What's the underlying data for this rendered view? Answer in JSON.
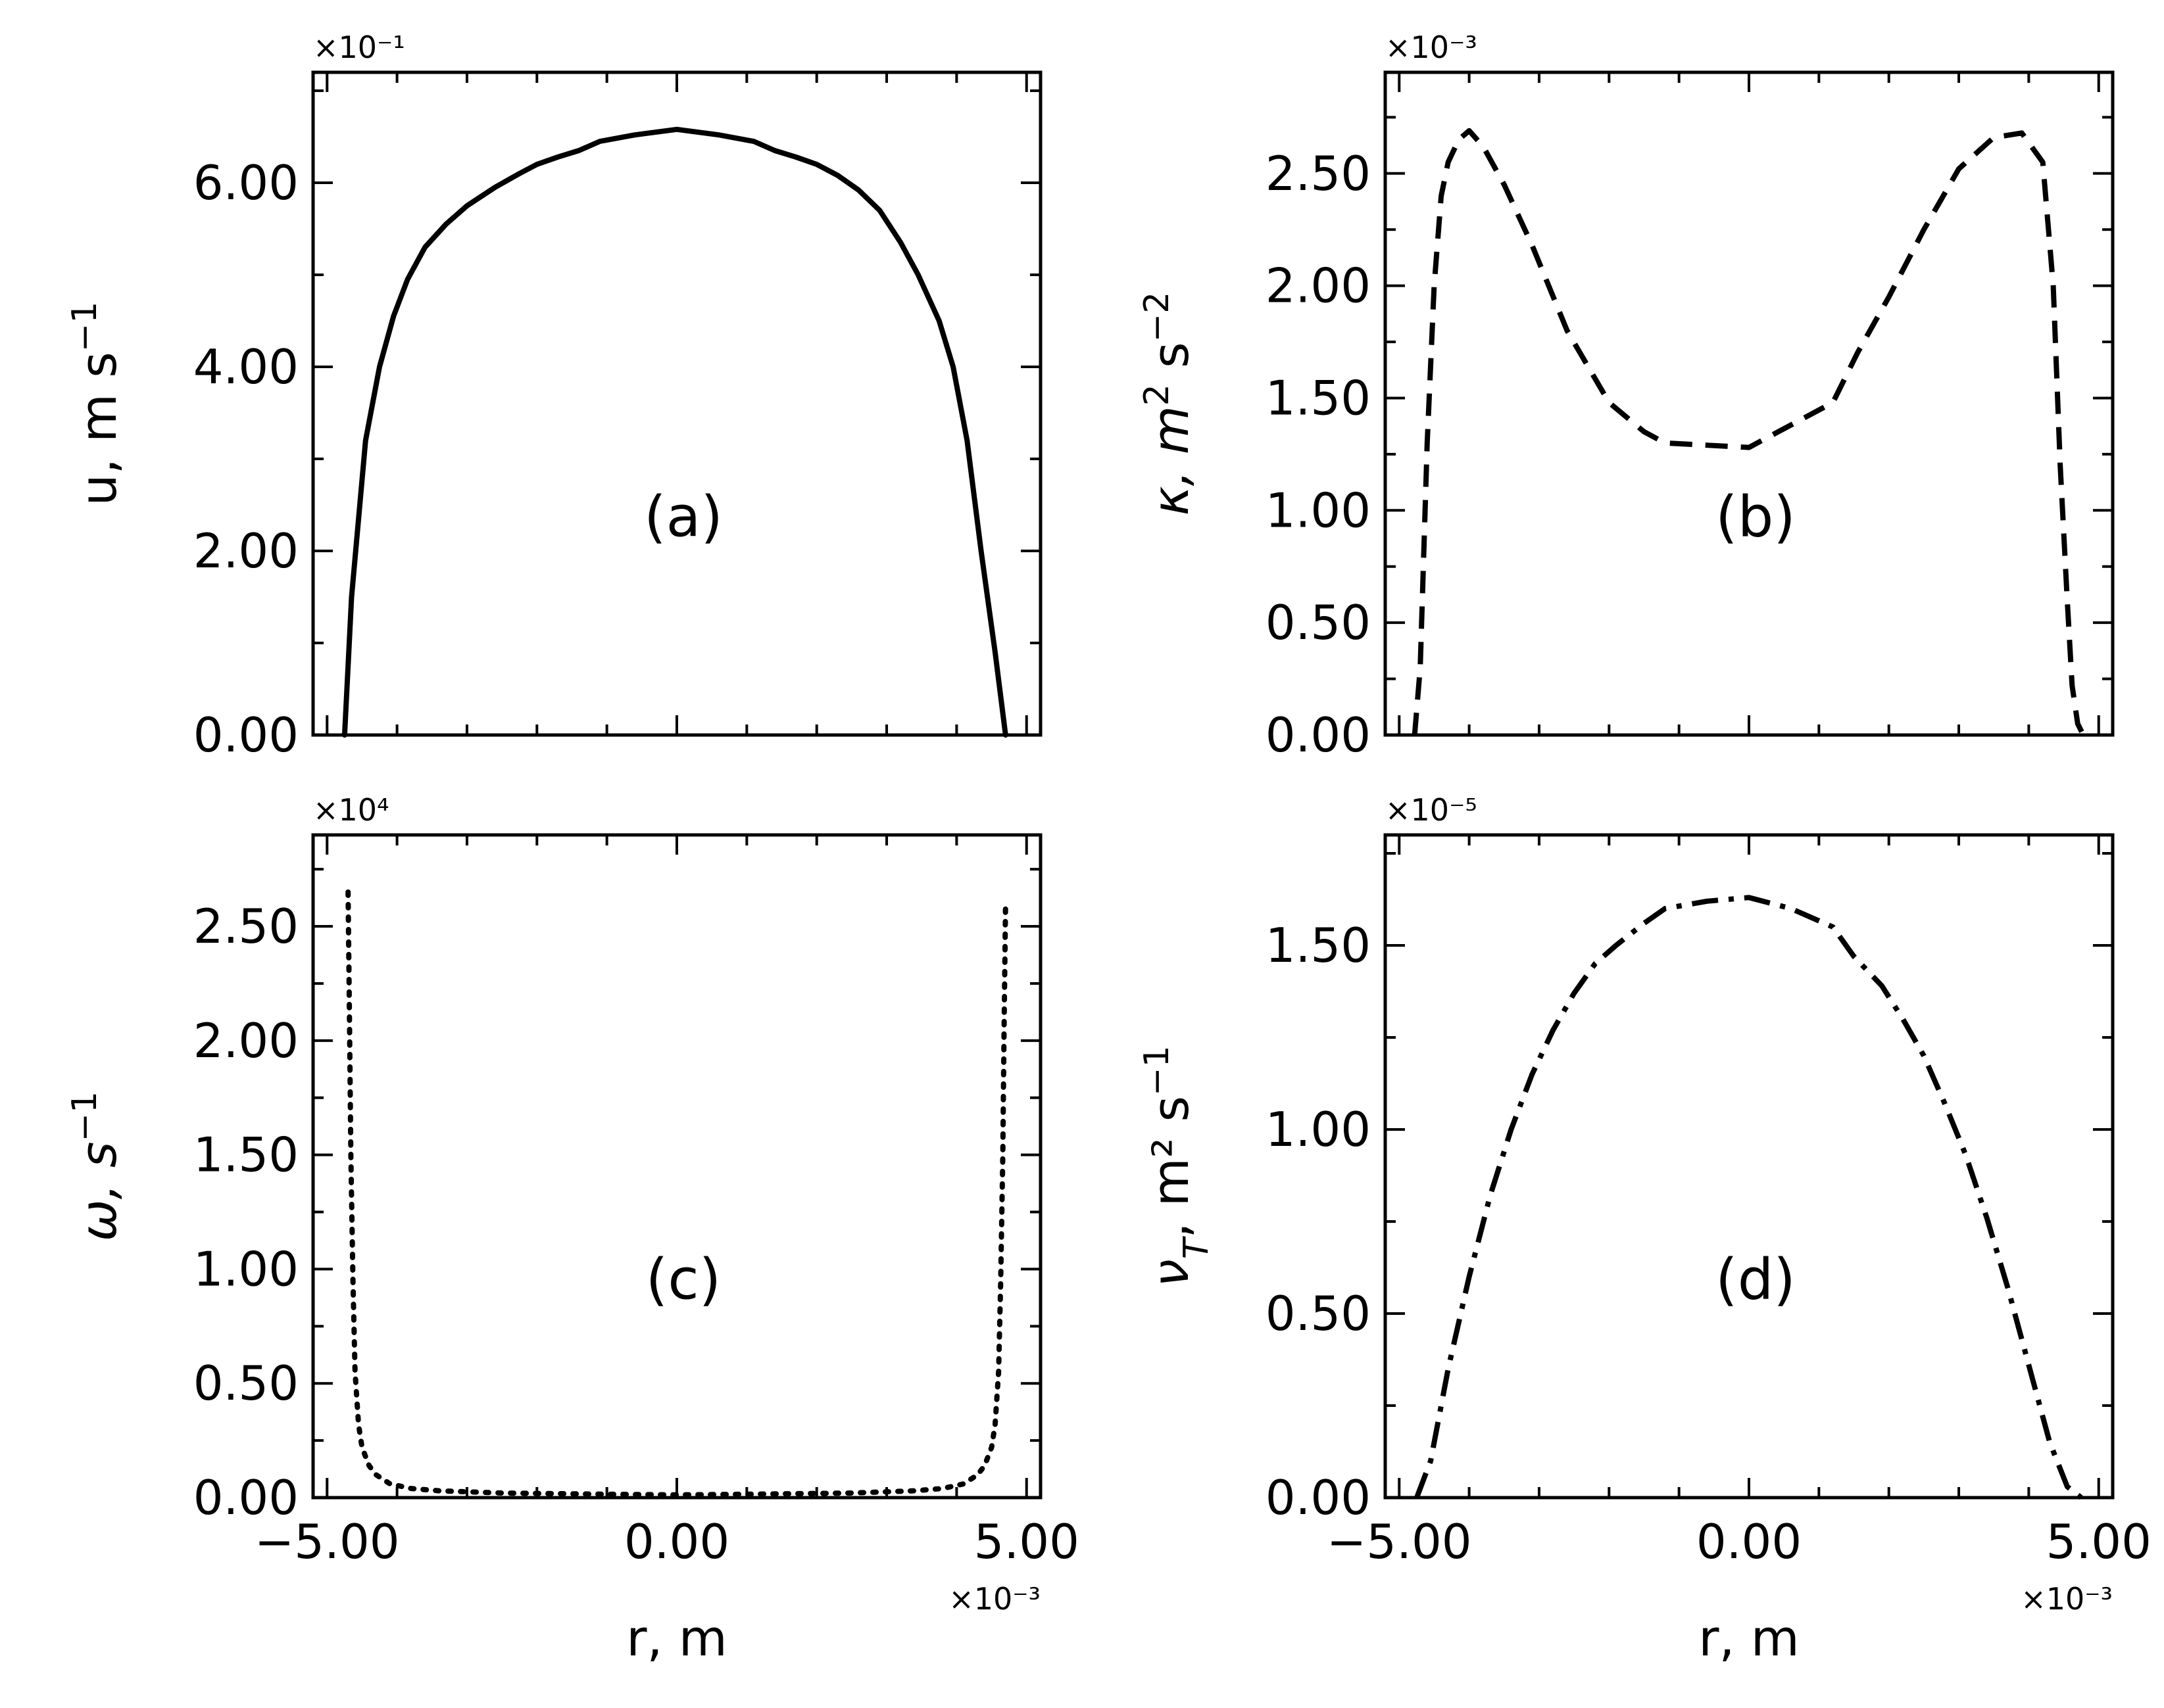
{
  "figure": {
    "shared_x_label": "r, m",
    "shared_x_exponent": "×10⁻³"
  },
  "chart_data": [
    {
      "id": "a",
      "type": "line",
      "panel_tag": "(a)",
      "title": "",
      "xlabel": "",
      "ylabel_main": "u, m s",
      "ylabel_sup": "−1",
      "ylabel_sub": "",
      "ylabel_sup2": "",
      "ylabel_tail": "",
      "y_exponent": "×10⁻¹",
      "x_exponent": "",
      "xlim": [
        -5.2,
        5.2
      ],
      "ylim": [
        0,
        7.2
      ],
      "xticks_major": [
        -5,
        0,
        5
      ],
      "xticks_minor": [
        -4,
        -3,
        -2,
        -1,
        1,
        2,
        3,
        4
      ],
      "xtick_labels": [],
      "yticks_major": [
        0,
        2,
        4,
        6
      ],
      "ytick_labels": [
        "0.00",
        "2.00",
        "4.00",
        "6.00"
      ],
      "yticks_minor": [
        1,
        3,
        5,
        7
      ],
      "line_style": "solid",
      "series": [
        {
          "name": "u",
          "x": [
            -4.75,
            -4.65,
            -4.45,
            -4.25,
            -4.05,
            -3.85,
            -3.6,
            -3.3,
            -3.0,
            -2.6,
            -2.25,
            -2.0,
            -1.7,
            -1.4,
            -1.1,
            -0.6,
            0.0,
            0.6,
            1.1,
            1.4,
            1.7,
            2.0,
            2.3,
            2.6,
            2.9,
            3.2,
            3.45,
            3.75,
            3.95,
            4.15,
            4.35,
            4.55,
            4.7
          ],
          "y": [
            0.0,
            1.5,
            3.2,
            4.0,
            4.55,
            4.95,
            5.3,
            5.55,
            5.75,
            5.95,
            6.1,
            6.2,
            6.28,
            6.35,
            6.45,
            6.52,
            6.58,
            6.52,
            6.45,
            6.35,
            6.28,
            6.2,
            6.08,
            5.92,
            5.7,
            5.35,
            5.0,
            4.5,
            4.0,
            3.2,
            2.0,
            0.9,
            0.0
          ]
        }
      ]
    },
    {
      "id": "b",
      "type": "line",
      "panel_tag": "(b)",
      "title": "",
      "xlabel": "",
      "ylabel_main": "κ, m",
      "ylabel_sup": "2",
      "ylabel_sub": "",
      "ylabel_sup2": "−2",
      "ylabel_tail": " s",
      "y_exponent": "×10⁻³",
      "x_exponent": "",
      "xlim": [
        -5.2,
        5.2
      ],
      "ylim": [
        0,
        2.95
      ],
      "xticks_major": [
        -5,
        0,
        5
      ],
      "xticks_minor": [
        -4,
        -3,
        -2,
        -1,
        1,
        2,
        3,
        4
      ],
      "xtick_labels": [],
      "yticks_major": [
        0,
        0.5,
        1.0,
        1.5,
        2.0,
        2.5
      ],
      "ytick_labels": [
        "0.00",
        "0.50",
        "1.00",
        "1.50",
        "2.00",
        "2.50"
      ],
      "yticks_minor": [
        0.25,
        0.75,
        1.25,
        1.75,
        2.25,
        2.75
      ],
      "line_style": "dashed",
      "series": [
        {
          "name": "kappa",
          "x": [
            -4.78,
            -4.7,
            -4.6,
            -4.5,
            -4.4,
            -4.3,
            -4.15,
            -4.0,
            -3.8,
            -3.5,
            -3.1,
            -2.6,
            -2.0,
            -1.5,
            -1.2,
            0.0,
            1.2,
            1.55,
            2.0,
            2.5,
            3.0,
            3.5,
            3.9,
            4.2,
            4.35,
            4.45,
            4.55,
            4.62,
            4.7,
            4.78
          ],
          "y": [
            0.0,
            0.3,
            1.3,
            2.0,
            2.4,
            2.55,
            2.65,
            2.69,
            2.62,
            2.45,
            2.18,
            1.8,
            1.48,
            1.35,
            1.3,
            1.28,
            1.48,
            1.7,
            1.95,
            2.25,
            2.52,
            2.66,
            2.68,
            2.55,
            2.0,
            1.2,
            0.6,
            0.22,
            0.05,
            0.0
          ]
        }
      ]
    },
    {
      "id": "c",
      "type": "line",
      "panel_tag": "(c)",
      "title": "",
      "xlabel": "r, m",
      "ylabel_main": "ω, s",
      "ylabel_sup": "−1",
      "ylabel_sub": "",
      "ylabel_sup2": "",
      "ylabel_tail": "",
      "y_exponent": "×10⁴",
      "x_exponent": "×10⁻³",
      "xlim": [
        -5.2,
        5.2
      ],
      "ylim": [
        0,
        2.9
      ],
      "xticks_major": [
        -5,
        0,
        5
      ],
      "xticks_minor": [
        -4,
        -3,
        -2,
        -1,
        1,
        2,
        3,
        4
      ],
      "xtick_labels": [
        "−5.00",
        "0.00",
        "5.00"
      ],
      "yticks_major": [
        0,
        0.5,
        1.0,
        1.5,
        2.0,
        2.5
      ],
      "ytick_labels": [
        "0.00",
        "0.50",
        "1.00",
        "1.50",
        "2.00",
        "2.50"
      ],
      "yticks_minor": [
        0.25,
        0.75,
        1.25,
        1.75,
        2.25,
        2.75
      ],
      "line_style": "dotted",
      "series": [
        {
          "name": "omega",
          "x": [
            -4.7,
            -4.68,
            -4.66,
            -4.63,
            -4.6,
            -4.55,
            -4.5,
            -4.4,
            -4.3,
            -4.1,
            -3.8,
            -3.4,
            -2.5,
            -1.0,
            0.0,
            1.0,
            2.5,
            3.4,
            3.8,
            4.1,
            4.3,
            4.4,
            4.5,
            4.55,
            4.6,
            4.63,
            4.66,
            4.68,
            4.7
          ],
          "y": [
            2.65,
            2.1,
            1.5,
            0.95,
            0.55,
            0.32,
            0.22,
            0.14,
            0.1,
            0.06,
            0.04,
            0.03,
            0.02,
            0.015,
            0.012,
            0.015,
            0.02,
            0.03,
            0.04,
            0.06,
            0.1,
            0.14,
            0.22,
            0.32,
            0.55,
            0.95,
            1.5,
            2.1,
            2.6
          ]
        }
      ]
    },
    {
      "id": "d",
      "type": "line",
      "panel_tag": "(d)",
      "title": "",
      "xlabel": "r, m",
      "ylabel_main": "ν",
      "ylabel_sup": "",
      "ylabel_sub": "T",
      "ylabel_sup2": "−1",
      "ylabel_tail": ", m² s",
      "y_exponent": "×10⁻⁵",
      "x_exponent": "×10⁻³",
      "xlim": [
        -5.2,
        5.2
      ],
      "ylim": [
        0,
        1.8
      ],
      "xticks_major": [
        -5,
        0,
        5
      ],
      "xticks_minor": [
        -4,
        -3,
        -2,
        -1,
        1,
        2,
        3,
        4
      ],
      "xtick_labels": [
        "−5.00",
        "0.00",
        "5.00"
      ],
      "yticks_major": [
        0,
        0.5,
        1.0,
        1.5
      ],
      "ytick_labels": [
        "0.00",
        "0.50",
        "1.00",
        "1.50"
      ],
      "yticks_minor": [
        0.25,
        0.75,
        1.25,
        1.75
      ],
      "line_style": "dashdot",
      "series": [
        {
          "name": "nu_T",
          "x": [
            -4.75,
            -4.55,
            -4.3,
            -4.0,
            -3.7,
            -3.4,
            -3.1,
            -2.8,
            -2.5,
            -2.2,
            -1.9,
            -1.5,
            -1.2,
            -0.6,
            0.0,
            0.6,
            1.2,
            1.5,
            1.9,
            2.2,
            2.5,
            2.8,
            3.1,
            3.4,
            3.7,
            4.0,
            4.3,
            4.55,
            4.75
          ],
          "y": [
            0.0,
            0.1,
            0.35,
            0.6,
            0.82,
            1.0,
            1.15,
            1.27,
            1.37,
            1.45,
            1.5,
            1.56,
            1.6,
            1.62,
            1.63,
            1.6,
            1.55,
            1.47,
            1.39,
            1.3,
            1.2,
            1.07,
            0.93,
            0.76,
            0.57,
            0.36,
            0.15,
            0.03,
            0.0
          ]
        }
      ]
    }
  ]
}
